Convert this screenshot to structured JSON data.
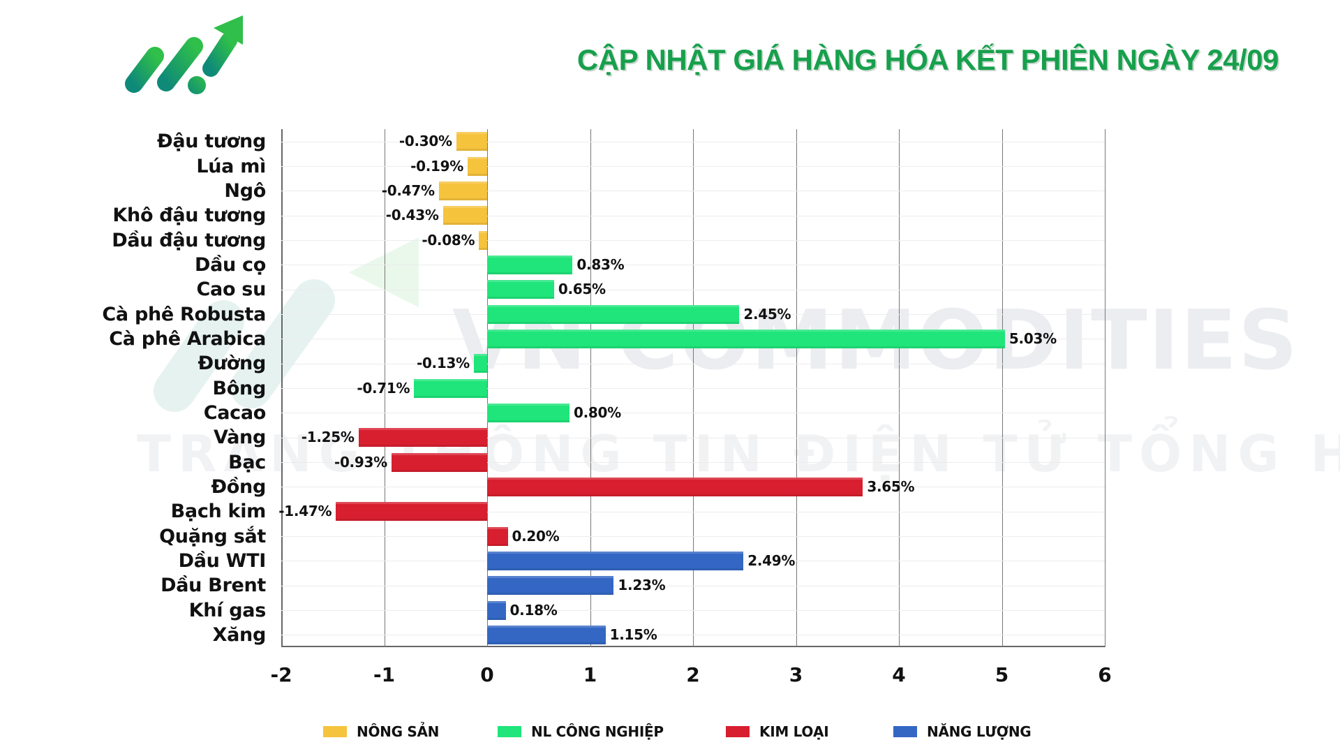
{
  "header": {
    "title": "CẬP NHẬT GIÁ HÀNG HÓA KẾT PHIÊN NGÀY 24/09",
    "logo_icon": "rising-arrow-logo-icon"
  },
  "watermark": {
    "main": "VN COMMODITIES",
    "sub": "TRANG THÔNG TIN ĐIỆN TỬ TỔNG HỢP"
  },
  "colors": {
    "nong_san": "#f6c33d",
    "nl_cong_nghiep": "#1fe57a",
    "kim_loai": "#d71f2f",
    "nang_luong": "#3467c4",
    "title": "#17a04c"
  },
  "legend": [
    {
      "label": "NÔNG SẢN",
      "group": "nong_san"
    },
    {
      "label": "NL CÔNG NGHIỆP",
      "group": "nl_cong_nghiep"
    },
    {
      "label": "KIM LOẠI",
      "group": "kim_loai"
    },
    {
      "label": "NĂNG LƯỢNG",
      "group": "nang_luong"
    }
  ],
  "chart_data": {
    "type": "bar",
    "orientation": "horizontal",
    "title": "CẬP NHẬT GIÁ HÀNG HÓA KẾT PHIÊN NGÀY 24/09",
    "xlabel": "",
    "ylabel": "",
    "xlim": [
      -2,
      6
    ],
    "x_ticks": [
      "-2",
      "-1",
      "0",
      "1",
      "2",
      "3",
      "4",
      "5",
      "6"
    ],
    "grid": true,
    "legend_position": "bottom",
    "unit": "%",
    "categories": [
      "Đậu tương",
      "Lúa mì",
      "Ngô",
      "Khô đậu tương",
      "Dầu đậu tương",
      "Dầu cọ",
      "Cao su",
      "Cà phê Robusta",
      "Cà phê Arabica",
      "Đường",
      "Bông",
      "Cacao",
      "Vàng",
      "Bạc",
      "Đồng",
      "Bạch kim",
      "Quặng sắt",
      "Dầu WTI",
      "Dầu Brent",
      "Khí gas",
      "Xăng"
    ],
    "values": [
      -0.3,
      -0.19,
      -0.47,
      -0.43,
      -0.08,
      0.83,
      0.65,
      2.45,
      5.03,
      -0.13,
      -0.71,
      0.8,
      -1.25,
      -0.93,
      3.65,
      -1.47,
      0.2,
      2.49,
      1.23,
      0.18,
      1.15
    ],
    "labels": [
      "-0.30%",
      "-0.19%",
      "-0.47%",
      "-0.43%",
      "-0.08%",
      "0.83%",
      "0.65%",
      "2.45%",
      "5.03%",
      "-0.13%",
      "-0.71%",
      "0.80%",
      "-1.25%",
      "-0.93%",
      "3.65%",
      "-1.47%",
      "0.20%",
      "2.49%",
      "1.23%",
      "0.18%",
      "1.15%"
    ],
    "groups": [
      "nong_san",
      "nong_san",
      "nong_san",
      "nong_san",
      "nong_san",
      "nl_cong_nghiep",
      "nl_cong_nghiep",
      "nl_cong_nghiep",
      "nl_cong_nghiep",
      "nl_cong_nghiep",
      "nl_cong_nghiep",
      "nl_cong_nghiep",
      "kim_loai",
      "kim_loai",
      "kim_loai",
      "kim_loai",
      "kim_loai",
      "nang_luong",
      "nang_luong",
      "nang_luong",
      "nang_luong"
    ],
    "series": [
      {
        "name": "NÔNG SẢN",
        "categories": [
          "Đậu tương",
          "Lúa mì",
          "Ngô",
          "Khô đậu tương",
          "Dầu đậu tương"
        ],
        "values": [
          -0.3,
          -0.19,
          -0.47,
          -0.43,
          -0.08
        ]
      },
      {
        "name": "NL CÔNG NGHIỆP",
        "categories": [
          "Dầu cọ",
          "Cao su",
          "Cà phê Robusta",
          "Cà phê Arabica",
          "Đường",
          "Bông",
          "Cacao"
        ],
        "values": [
          0.83,
          0.65,
          2.45,
          5.03,
          -0.13,
          -0.71,
          0.8
        ]
      },
      {
        "name": "KIM LOẠI",
        "categories": [
          "Vàng",
          "Bạc",
          "Đồng",
          "Bạch kim",
          "Quặng sắt"
        ],
        "values": [
          -1.25,
          -0.93,
          3.65,
          -1.47,
          0.2
        ]
      },
      {
        "name": "NĂNG LƯỢNG",
        "categories": [
          "Dầu WTI",
          "Dầu Brent",
          "Khí gas",
          "Xăng"
        ],
        "values": [
          2.49,
          1.23,
          0.18,
          1.15
        ]
      }
    ]
  }
}
